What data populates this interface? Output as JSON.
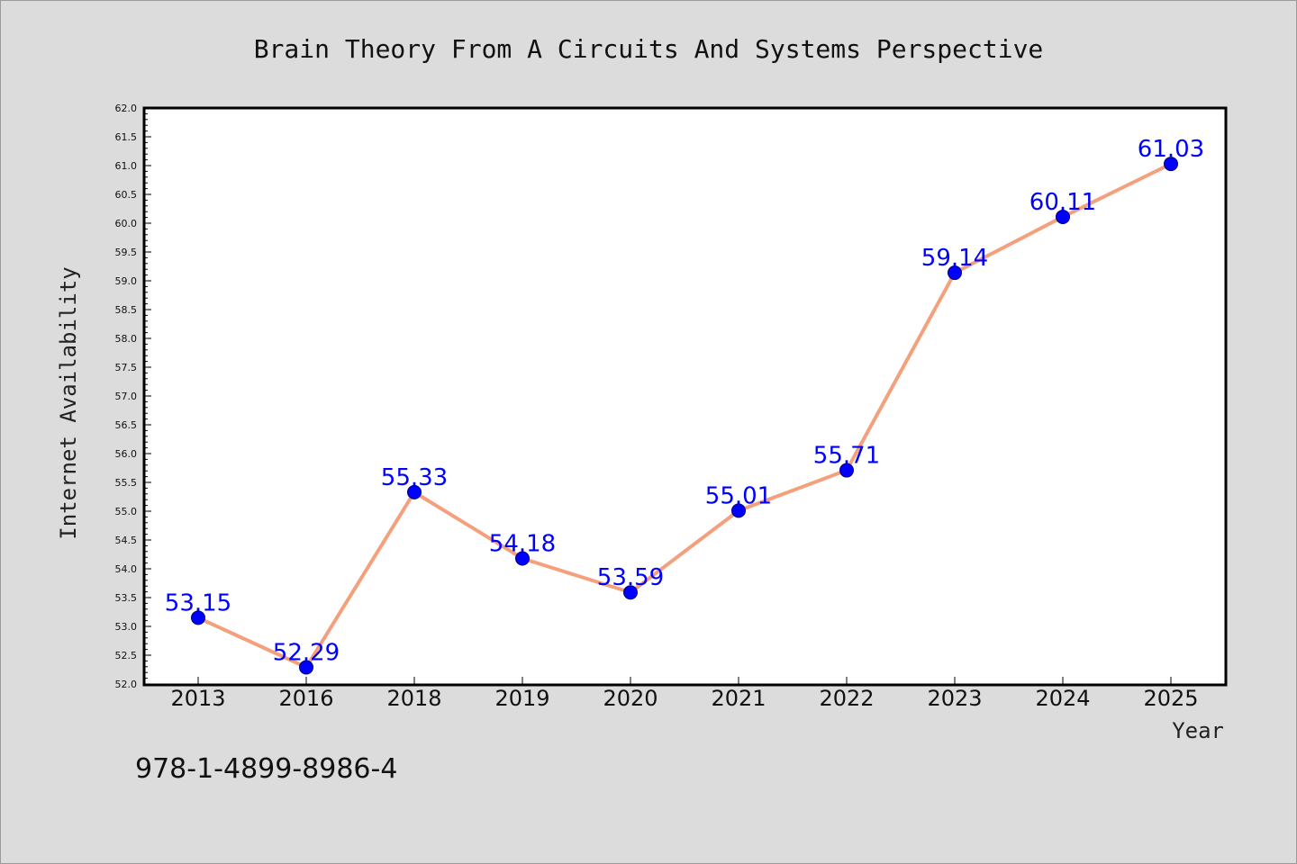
{
  "chart_data": {
    "type": "line",
    "title": "Brain Theory From A Circuits And Systems Perspective",
    "xlabel": "Year",
    "ylabel": "Internet Availability",
    "categories": [
      "2013",
      "2016",
      "2018",
      "2019",
      "2020",
      "2021",
      "2022",
      "2023",
      "2024",
      "2025"
    ],
    "values": [
      53.15,
      52.29,
      55.33,
      54.18,
      53.59,
      55.01,
      55.71,
      59.14,
      60.11,
      61.03
    ],
    "data_labels": [
      "53.15",
      "52.29",
      "55.33",
      "54.18",
      "53.59",
      "55.01",
      "55.71",
      "59.14",
      "60.11",
      "61.03"
    ],
    "ylim": [
      52.0,
      62.0
    ],
    "ytick_labels": [
      "52.0",
      "52.5",
      "53.0",
      "53.5",
      "54.0",
      "54.5",
      "55.0",
      "55.5",
      "56.0",
      "56.5",
      "57.0",
      "57.5",
      "58.0",
      "58.5",
      "59.0",
      "59.5",
      "60.0",
      "60.5",
      "61.0",
      "61.5",
      "62.0"
    ],
    "grid": false,
    "line_color": "#f4a07c",
    "marker_color": "#0000ff",
    "label_color": "#0000ff"
  },
  "footer_text": "978-1-4899-8986-4"
}
